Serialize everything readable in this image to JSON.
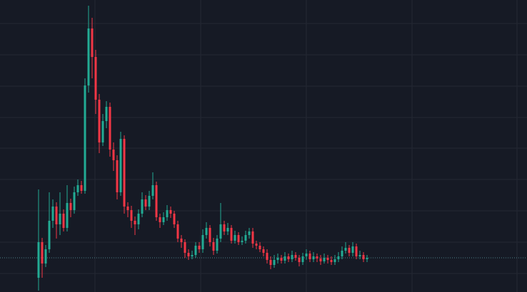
{
  "chart_data": {
    "type": "candlestick",
    "open": [
      20,
      70,
      40,
      60,
      100,
      120,
      95,
      110,
      90,
      125,
      115,
      140,
      150,
      142,
      290,
      370,
      330,
      270,
      210,
      240,
      260,
      200,
      185,
      140,
      215,
      120,
      115,
      100,
      95,
      110,
      130,
      120,
      135,
      150,
      105,
      98,
      105,
      115,
      110,
      95,
      75,
      70,
      55,
      50,
      52,
      65,
      60,
      80,
      90,
      70,
      58,
      75,
      95,
      85,
      90,
      72,
      80,
      70,
      72,
      80,
      85,
      68,
      65,
      60,
      55,
      45,
      38,
      45,
      48,
      44,
      50,
      46,
      52,
      48,
      42,
      50,
      54,
      46,
      50,
      47,
      43,
      48,
      45,
      42,
      46,
      50,
      58,
      62,
      55,
      64,
      50,
      52,
      46
    ],
    "high": [
      144,
      76,
      66,
      140,
      130,
      126,
      140,
      116,
      150,
      131,
      148,
      158,
      156,
      300,
      402,
      385,
      340,
      278,
      250,
      268,
      266,
      210,
      192,
      225,
      220,
      126,
      121,
      106,
      116,
      140,
      136,
      142,
      168,
      155,
      110,
      112,
      122,
      120,
      114,
      100,
      80,
      74,
      60,
      58,
      70,
      70,
      88,
      98,
      94,
      76,
      80,
      125,
      100,
      97,
      94,
      86,
      84,
      78,
      86,
      90,
      90,
      72,
      70,
      64,
      60,
      50,
      52,
      54,
      52,
      56,
      54,
      58,
      56,
      52,
      55,
      60,
      58,
      56,
      54,
      52,
      54,
      52,
      50,
      52,
      56,
      64,
      70,
      66,
      70,
      68,
      58,
      56,
      52
    ],
    "low": [
      2,
      20,
      35,
      55,
      90,
      75,
      80,
      85,
      85,
      105,
      110,
      135,
      138,
      138,
      280,
      300,
      250,
      195,
      205,
      230,
      190,
      170,
      130,
      135,
      110,
      105,
      90,
      80,
      88,
      105,
      115,
      115,
      130,
      100,
      90,
      94,
      100,
      104,
      90,
      70,
      62,
      48,
      45,
      46,
      48,
      55,
      55,
      75,
      64,
      52,
      54,
      70,
      80,
      80,
      68,
      68,
      66,
      66,
      68,
      75,
      62,
      60,
      56,
      50,
      40,
      32,
      34,
      40,
      40,
      40,
      42,
      42,
      44,
      36,
      38,
      45,
      42,
      42,
      42,
      38,
      40,
      40,
      38,
      38,
      42,
      46,
      54,
      50,
      50,
      46,
      46,
      42,
      42
    ],
    "close": [
      70,
      40,
      60,
      100,
      120,
      95,
      110,
      90,
      125,
      115,
      140,
      150,
      142,
      290,
      370,
      330,
      270,
      210,
      240,
      260,
      200,
      185,
      140,
      215,
      120,
      115,
      100,
      95,
      110,
      130,
      120,
      135,
      150,
      105,
      98,
      105,
      115,
      110,
      95,
      75,
      70,
      55,
      50,
      52,
      65,
      60,
      80,
      90,
      70,
      58,
      75,
      95,
      85,
      90,
      72,
      80,
      70,
      72,
      80,
      85,
      68,
      65,
      60,
      55,
      45,
      38,
      45,
      48,
      44,
      50,
      46,
      52,
      48,
      42,
      50,
      54,
      46,
      50,
      47,
      43,
      48,
      45,
      42,
      46,
      50,
      58,
      62,
      55,
      64,
      50,
      52,
      46,
      48
    ],
    "ylim": [
      0,
      410
    ],
    "up_color": "#22ab94",
    "down_color": "#f23645",
    "last_price_line": true
  }
}
